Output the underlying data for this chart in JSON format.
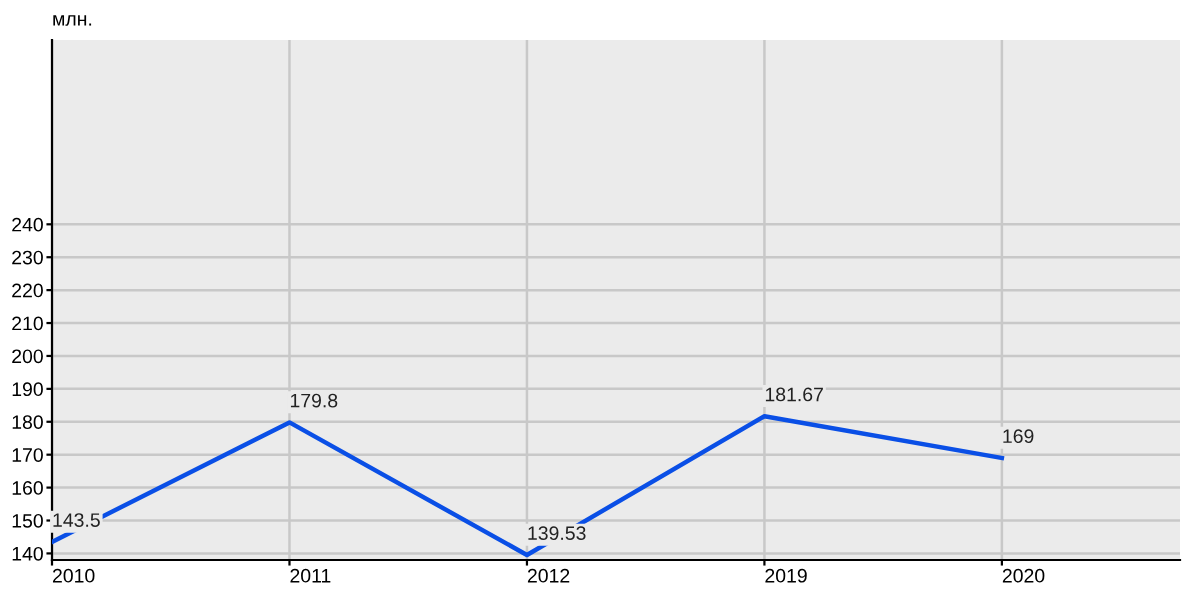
{
  "chart_data": {
    "type": "line",
    "ylabel": "млн.",
    "categories": [
      "2010",
      "2011",
      "2012",
      "2019",
      "2020"
    ],
    "series": [
      {
        "color": "#0a4fe6",
        "values": [
          143.5,
          179.8,
          139.53,
          181.67,
          169
        ]
      }
    ],
    "ylim": [
      138,
      296
    ],
    "yticks": [
      140,
      150,
      160,
      170,
      180,
      190,
      200,
      210,
      220,
      230,
      240
    ],
    "grid": true,
    "data_labels": true,
    "marker": "none",
    "line_style": "solid"
  }
}
